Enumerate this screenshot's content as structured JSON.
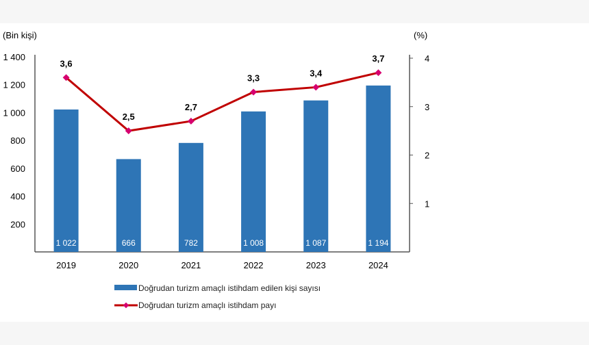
{
  "chart_data": {
    "type": "bar+line",
    "categories": [
      "2019",
      "2020",
      "2021",
      "2022",
      "2023",
      "2024"
    ],
    "y_left_label": "(Bin kişi)",
    "y_right_label": "(%)",
    "y_left_ticks": [
      "200",
      "400",
      "600",
      "800",
      "1 000",
      "1 200",
      "1 400"
    ],
    "y_left_tick_values": [
      200,
      400,
      600,
      800,
      1000,
      1200,
      1400
    ],
    "y_right_ticks": [
      "1",
      "2",
      "3",
      "4"
    ],
    "y_left_lim": [
      0,
      1400
    ],
    "y_right_lim": [
      0,
      4
    ],
    "series": [
      {
        "name": "Doğrudan turizm amaçlı istihdam edilen kişi sayısı",
        "type": "bar",
        "axis": "left",
        "color": "#2e75b6",
        "values": [
          1022,
          666,
          782,
          1008,
          1087,
          1194
        ],
        "labels": [
          "1 022",
          "666",
          "782",
          "1 008",
          "1 087",
          "1 194"
        ]
      },
      {
        "name": "Doğrudan turizm amaçlı istihdam payı",
        "type": "line",
        "axis": "right",
        "color": "#c00000",
        "marker_color": "#d6006f",
        "values": [
          3.6,
          2.5,
          2.7,
          3.3,
          3.4,
          3.7
        ],
        "labels": [
          "3,6",
          "2,5",
          "2,7",
          "3,3",
          "3,4",
          "3,7"
        ]
      }
    ],
    "grid": false,
    "legend_placement": "bottom"
  }
}
